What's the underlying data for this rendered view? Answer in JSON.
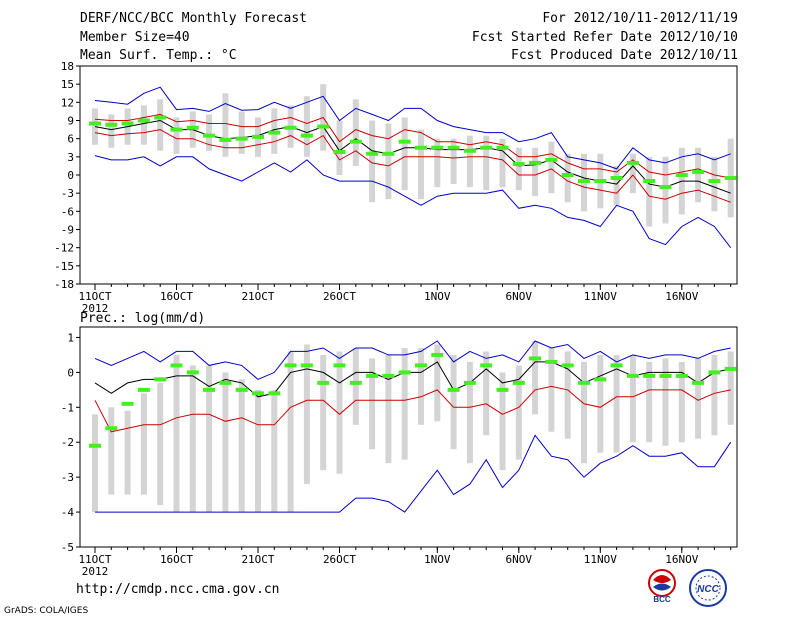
{
  "header": {
    "title": "DERF/NCC/BCC Monthly Forecast",
    "member_size": "Member Size=40",
    "variable": "Mean Surf. Temp.: °C",
    "range": "For 2012/10/11-2012/11/19",
    "started": "Fcst Started Refer Date 2012/10/10",
    "produced": "Fcst Produced Date 2012/10/11"
  },
  "footer": {
    "url": "http://cmdp.ncc.cma.gov.cn",
    "grads": "GrADS: COLA/IGES",
    "logo_bcc": "BCC",
    "logo_ncc": "NCC"
  },
  "colors": {
    "max_min": "#0000cc",
    "spread": "#cc0000",
    "mean": "#000000",
    "median": "#44ee22",
    "box": "#d4d4d4"
  },
  "chart_data": [
    {
      "type": "line",
      "title": "Mean Surf. Temp.: °C",
      "year_label": "2012",
      "ylim": [
        -18,
        18
      ],
      "yticks": [
        -18,
        -15,
        -12,
        -9,
        -6,
        -3,
        0,
        3,
        6,
        9,
        12,
        15,
        18
      ],
      "xticks": [
        {
          "i": 0,
          "label": "11OCT"
        },
        {
          "i": 5,
          "label": "16OCT"
        },
        {
          "i": 10,
          "label": "21OCT"
        },
        {
          "i": 15,
          "label": "26OCT"
        },
        {
          "i": 21,
          "label": "1NOV"
        },
        {
          "i": 26,
          "label": "6NOV"
        },
        {
          "i": 31,
          "label": "11NOV"
        },
        {
          "i": 36,
          "label": "16NOV"
        }
      ],
      "days": 40,
      "series": [
        {
          "name": "max",
          "values": [
            12.3,
            12.0,
            11.7,
            13.5,
            14.5,
            10.8,
            11.0,
            10.5,
            11.8,
            10.7,
            10.8,
            12.0,
            11.0,
            12.0,
            13.0,
            9.0,
            11.0,
            10.0,
            9.0,
            11.0,
            11.0,
            9.0,
            8.0,
            7.5,
            7.0,
            7.0,
            5.5,
            6.0,
            7.0,
            3.0,
            2.5,
            2.0,
            1.0,
            4.5,
            2.5,
            2.0,
            3.0,
            3.5,
            2.5,
            3.5
          ]
        },
        {
          "name": "upper",
          "values": [
            9.2,
            9.0,
            9.0,
            9.5,
            10.0,
            8.8,
            9.0,
            8.5,
            8.5,
            8.0,
            8.0,
            9.0,
            9.5,
            8.5,
            9.5,
            5.5,
            7.5,
            6.5,
            6.0,
            7.5,
            7.0,
            5.5,
            5.5,
            5.0,
            5.5,
            5.0,
            3.0,
            3.0,
            3.5,
            2.0,
            1.0,
            1.0,
            0.5,
            2.5,
            0.5,
            0.0,
            0.5,
            1.0,
            0.0,
            -0.5
          ]
        },
        {
          "name": "mean",
          "values": [
            8.0,
            7.5,
            8.0,
            8.5,
            9.0,
            7.5,
            7.5,
            6.5,
            6.0,
            6.2,
            6.5,
            7.5,
            8.0,
            7.0,
            8.0,
            4.0,
            6.0,
            4.0,
            3.5,
            4.5,
            4.5,
            4.2,
            4.2,
            4.2,
            4.5,
            4.0,
            1.5,
            1.7,
            2.5,
            0.5,
            -0.5,
            -1.0,
            -1.5,
            1.5,
            -1.5,
            -2.0,
            -1.0,
            -1.0,
            -2.0,
            -3.0
          ]
        },
        {
          "name": "lower",
          "values": [
            7.0,
            6.5,
            6.8,
            7.0,
            7.5,
            6.0,
            6.0,
            5.0,
            4.5,
            4.5,
            5.0,
            5.5,
            6.5,
            5.0,
            6.5,
            2.5,
            4.0,
            2.0,
            1.5,
            3.0,
            3.0,
            3.0,
            2.8,
            3.0,
            3.0,
            2.5,
            0.0,
            0.0,
            1.0,
            -1.0,
            -2.0,
            -2.5,
            -3.0,
            0.0,
            -3.5,
            -4.0,
            -3.0,
            -2.5,
            -3.5,
            -4.5
          ]
        },
        {
          "name": "min",
          "values": [
            3.2,
            2.5,
            2.5,
            3.0,
            1.5,
            3.0,
            3.0,
            1.0,
            0.0,
            -1.0,
            0.5,
            2.0,
            0.5,
            2.5,
            0.0,
            -1.0,
            -1.0,
            -1.0,
            -2.0,
            -3.5,
            -5.0,
            -3.5,
            -3.0,
            -3.0,
            -3.0,
            -2.5,
            -5.5,
            -5.0,
            -5.5,
            -7.0,
            -7.5,
            -8.5,
            -5.0,
            -6.0,
            -10.5,
            -11.5,
            -8.5,
            -7.0,
            -8.5,
            -12.0
          ]
        },
        {
          "name": "median",
          "values": [
            8.5,
            8.3,
            8.5,
            9.0,
            9.5,
            7.5,
            7.8,
            6.5,
            5.8,
            6.0,
            6.3,
            7.0,
            7.8,
            6.5,
            8.0,
            3.8,
            5.5,
            3.5,
            3.5,
            5.5,
            4.5,
            4.5,
            4.5,
            4.0,
            4.5,
            4.5,
            1.8,
            2.0,
            2.5,
            0.0,
            -1.0,
            -1.0,
            -0.5,
            2.0,
            -1.0,
            -2.0,
            0.0,
            0.5,
            -1.0,
            -0.5
          ]
        }
      ],
      "boxes": {
        "low": [
          5.0,
          4.5,
          5.0,
          5.0,
          4.0,
          3.5,
          4.5,
          4.0,
          3.0,
          3.5,
          3.0,
          3.5,
          4.5,
          3.0,
          4.0,
          0.0,
          1.5,
          -4.5,
          -4.0,
          -2.5,
          -4.0,
          -2.0,
          -1.5,
          -2.0,
          -2.5,
          -2.0,
          -2.5,
          -3.5,
          -3.0,
          -4.5,
          -6.0,
          -5.5,
          -5.0,
          -3.0,
          -8.5,
          -8.0,
          -6.5,
          -4.5,
          -6.0,
          -7.0
        ],
        "high": [
          11.0,
          10.0,
          11.0,
          11.5,
          12.5,
          9.5,
          10.5,
          10.0,
          13.5,
          10.5,
          9.5,
          11.0,
          11.5,
          13.0,
          15.0,
          9.0,
          12.5,
          9.0,
          8.5,
          9.5,
          7.5,
          6.0,
          6.0,
          6.5,
          6.5,
          6.0,
          4.5,
          4.5,
          5.5,
          3.5,
          3.5,
          3.5,
          1.5,
          3.5,
          3.0,
          3.0,
          4.5,
          4.5,
          3.0,
          6.0
        ]
      }
    },
    {
      "type": "line",
      "title": "Prec.: log(mm/d)",
      "year_label": "2012",
      "ylim": [
        -5,
        1.3
      ],
      "yticks": [
        -5,
        -4,
        -3,
        -2,
        -1,
        0,
        1
      ],
      "xticks": [
        {
          "i": 0,
          "label": "11OCT"
        },
        {
          "i": 5,
          "label": "16OCT"
        },
        {
          "i": 10,
          "label": "21OCT"
        },
        {
          "i": 15,
          "label": "26OCT"
        },
        {
          "i": 21,
          "label": "1NOV"
        },
        {
          "i": 26,
          "label": "6NOV"
        },
        {
          "i": 31,
          "label": "11NOV"
        },
        {
          "i": 36,
          "label": "16NOV"
        }
      ],
      "days": 40,
      "series": [
        {
          "name": "max",
          "values": [
            0.4,
            0.2,
            0.4,
            0.6,
            0.3,
            0.6,
            0.6,
            0.2,
            0.3,
            0.2,
            -0.2,
            0.0,
            0.6,
            0.6,
            0.7,
            0.4,
            0.7,
            0.7,
            0.5,
            0.5,
            0.6,
            0.9,
            0.3,
            0.6,
            0.4,
            0.5,
            0.3,
            0.9,
            0.7,
            0.8,
            0.4,
            0.6,
            0.3,
            0.5,
            0.4,
            0.5,
            0.5,
            0.4,
            0.6,
            0.7
          ]
        },
        {
          "name": "mean",
          "values": [
            -0.3,
            -0.6,
            -0.3,
            -0.2,
            -0.2,
            -0.1,
            -0.1,
            -0.4,
            -0.2,
            -0.3,
            -0.7,
            -0.6,
            0.0,
            0.1,
            0.0,
            -0.3,
            0.0,
            0.0,
            -0.2,
            0.0,
            0.0,
            0.3,
            -0.5,
            -0.3,
            0.1,
            -0.3,
            -0.2,
            0.3,
            0.3,
            0.1,
            -0.3,
            -0.1,
            0.1,
            -0.1,
            0.0,
            0.0,
            0.0,
            -0.3,
            0.0,
            0.1
          ]
        },
        {
          "name": "lower",
          "values": [
            -0.8,
            -1.7,
            -1.6,
            -1.5,
            -1.5,
            -1.3,
            -1.2,
            -1.2,
            -1.4,
            -1.3,
            -1.5,
            -1.5,
            -1.0,
            -0.8,
            -0.8,
            -1.2,
            -0.8,
            -0.8,
            -0.8,
            -0.8,
            -0.7,
            -0.5,
            -1.0,
            -1.0,
            -0.9,
            -1.2,
            -1.0,
            -0.5,
            -0.4,
            -0.5,
            -0.9,
            -1.0,
            -0.7,
            -0.7,
            -0.5,
            -0.5,
            -0.5,
            -0.8,
            -0.6,
            -0.5
          ]
        },
        {
          "name": "min",
          "values": [
            -4.0,
            -4.0,
            -4.0,
            -4.0,
            -4.0,
            -4.0,
            -4.0,
            -4.0,
            -4.0,
            -4.0,
            -4.0,
            -4.0,
            -4.0,
            -4.0,
            -4.0,
            -4.0,
            -3.6,
            -3.6,
            -3.7,
            -4.0,
            -3.4,
            -2.8,
            -3.5,
            -3.2,
            -2.5,
            -3.3,
            -2.8,
            -1.8,
            -2.4,
            -2.5,
            -3.0,
            -2.6,
            -2.4,
            -2.1,
            -2.4,
            -2.4,
            -2.3,
            -2.7,
            -2.7,
            -2.0
          ]
        },
        {
          "name": "median",
          "values": [
            -2.1,
            -1.6,
            -0.9,
            -0.5,
            -0.2,
            0.2,
            0.0,
            -0.5,
            -0.3,
            -0.5,
            -0.6,
            -0.6,
            0.2,
            0.2,
            -0.3,
            0.2,
            -0.3,
            -0.1,
            -0.1,
            0.0,
            0.2,
            0.5,
            -0.5,
            -0.3,
            0.2,
            -0.5,
            -0.3,
            0.4,
            0.3,
            0.2,
            -0.3,
            -0.2,
            0.2,
            -0.1,
            -0.1,
            -0.1,
            -0.1,
            -0.3,
            0.0,
            0.1
          ]
        }
      ],
      "boxes": {
        "low": [
          -4.0,
          -3.5,
          -3.5,
          -3.5,
          -3.8,
          -4.0,
          -4.0,
          -4.0,
          -4.0,
          -4.0,
          -4.0,
          -4.0,
          -4.0,
          -3.2,
          -2.8,
          -2.9,
          -1.5,
          -2.2,
          -2.6,
          -2.5,
          -1.5,
          -1.4,
          -2.2,
          -2.6,
          -1.8,
          -2.8,
          -2.5,
          -1.2,
          -1.7,
          -1.9,
          -2.6,
          -2.3,
          -2.3,
          -2.0,
          -2.0,
          -2.1,
          -2.0,
          -1.9,
          -1.8,
          -1.5
        ],
        "high": [
          -1.2,
          -1.0,
          -1.1,
          -0.6,
          -0.3,
          0.5,
          0.2,
          0.2,
          0.0,
          -0.2,
          -0.5,
          -0.5,
          0.6,
          0.8,
          0.5,
          0.6,
          0.7,
          0.4,
          0.5,
          0.7,
          0.7,
          0.8,
          0.5,
          0.3,
          0.6,
          0.0,
          0.2,
          0.9,
          0.7,
          0.6,
          0.3,
          0.5,
          0.5,
          0.5,
          0.3,
          0.4,
          0.3,
          0.4,
          0.5,
          0.6
        ]
      }
    }
  ]
}
